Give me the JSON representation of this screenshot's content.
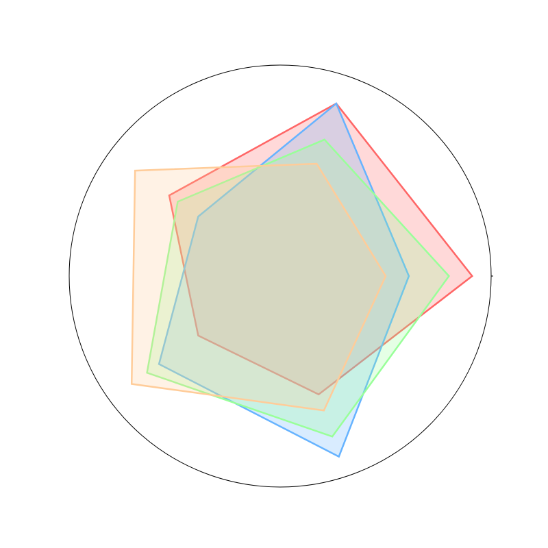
{
  "chart_data": {
    "type": "radar",
    "axes_count": 5,
    "axes": [
      "",
      "",
      "",
      "",
      ""
    ],
    "rmax": 1.0,
    "grid": false,
    "legend": "none",
    "series": [
      {
        "color": "#ff6666",
        "values": [
          0.91,
          0.86,
          0.65,
          0.48,
          0.59
        ]
      },
      {
        "color": "#66b3ff",
        "values": [
          0.61,
          0.86,
          0.48,
          0.71,
          0.9
        ]
      },
      {
        "color": "#99ff99",
        "values": [
          0.8,
          0.68,
          0.6,
          0.78,
          0.8
        ]
      },
      {
        "color": "#ffcc99",
        "values": [
          0.5,
          0.56,
          0.85,
          0.87,
          0.67
        ]
      }
    ]
  }
}
